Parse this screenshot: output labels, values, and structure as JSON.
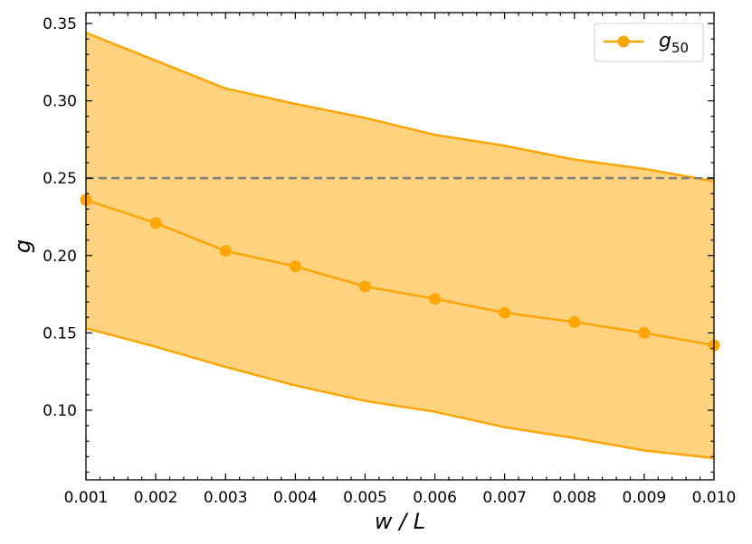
{
  "chart_data": {
    "type": "line",
    "xlabel": "w / L",
    "ylabel": "g",
    "xlim": [
      0.001,
      0.01
    ],
    "ylim": [
      0.055,
      0.357
    ],
    "x": [
      0.001,
      0.002,
      0.003,
      0.004,
      0.005,
      0.006,
      0.007,
      0.008,
      0.009,
      0.01
    ],
    "x_tick_labels": [
      "0.001",
      "0.002",
      "0.003",
      "0.004",
      "0.005",
      "0.006",
      "0.007",
      "0.008",
      "0.009",
      "0.010"
    ],
    "y_ticks": [
      0.1,
      0.15,
      0.2,
      0.25,
      0.3,
      0.35
    ],
    "y_tick_labels": [
      "0.10",
      "0.15",
      "0.20",
      "0.25",
      "0.30",
      "0.35"
    ],
    "series": [
      {
        "name": "g50",
        "values": [
          0.236,
          0.221,
          0.203,
          0.193,
          0.18,
          0.172,
          0.163,
          0.157,
          0.15,
          0.142
        ],
        "color": "#ffa500"
      }
    ],
    "band": {
      "upper": [
        0.344,
        0.326,
        0.308,
        0.298,
        0.289,
        0.278,
        0.271,
        0.262,
        0.256,
        0.248
      ],
      "lower": [
        0.153,
        0.141,
        0.128,
        0.116,
        0.106,
        0.099,
        0.089,
        0.082,
        0.074,
        0.069
      ],
      "fill": "#ffa500",
      "opacity": 0.5
    },
    "reference_line": {
      "y": 0.25,
      "style": "dashed",
      "color": "#808080"
    },
    "legend": {
      "position": "top-right",
      "entries": [
        {
          "main": "g",
          "subscript": "50"
        }
      ]
    },
    "grid": false
  }
}
